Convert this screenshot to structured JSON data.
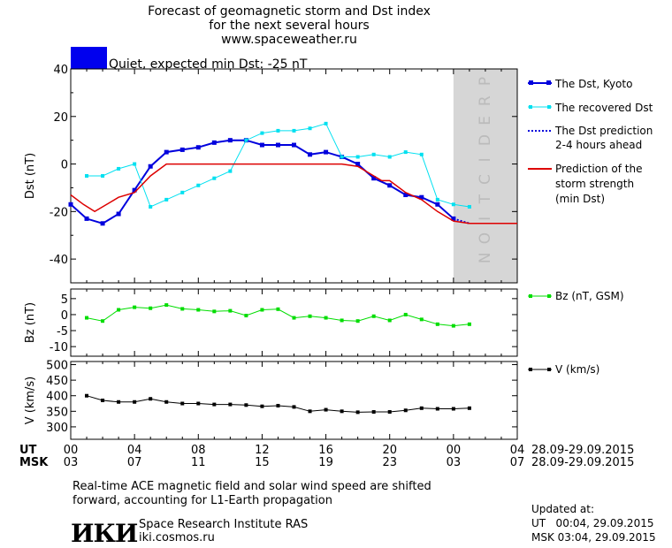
{
  "header": {
    "title_lines": [
      "Forecast of geomagnetic storm and Dst index",
      "for the next several hours",
      "www.spaceweather.ru"
    ],
    "status_text": "Quiet, expected min Dst: -25 nT",
    "status_color": "#0000ee"
  },
  "legend": {
    "dst_kyoto": "The Dst, Kyoto",
    "recovered": "The recovered Dst",
    "prediction_lines": [
      "The Dst prediction",
      "2-4 hours ahead"
    ],
    "strength_lines": [
      "Prediction of the",
      "storm strength",
      "(min Dst)"
    ],
    "bz": "Bz (nT, GSM)",
    "v": "V (km/s)"
  },
  "prediction_label": "PREDICTION",
  "time_axis": {
    "ut_label": "UT",
    "msk_label": "MSK",
    "ut_ticks": [
      "00",
      "04",
      "08",
      "12",
      "16",
      "20",
      "00",
      "04"
    ],
    "msk_ticks": [
      "03",
      "07",
      "11",
      "15",
      "19",
      "23",
      "03",
      "07"
    ],
    "ut_date_range": "28.09-29.09.2015",
    "msk_date_range": "28.09-29.09.2015"
  },
  "footer": {
    "note_lines": [
      "Real-time ACE magnetic field and solar wind speed are shifted",
      "forward, accounting for L1-Earth propagation"
    ],
    "logo_text": "ИКИ",
    "institute": "Space Research Institute RAS",
    "url": "iki.cosmos.ru",
    "updated_label": "Updated at:",
    "updated_ut": "UT   00:04, 29.09.2015",
    "updated_msk": "MSK 03:04, 29.09.2015"
  },
  "colors": {
    "dst": "#0000dd",
    "recovered": "#00e0f0",
    "prediction": "#0000dd",
    "strength": "#dd0000",
    "bz": "#00dd00",
    "v": "#000000",
    "prediction_zone": "#d6d6d6"
  },
  "chart_data": [
    {
      "type": "line",
      "ylabel": "Dst (nT)",
      "xlim": [
        0,
        28
      ],
      "prediction_zone": [
        24,
        28
      ],
      "ylim": [
        -50,
        40
      ],
      "yticks": [
        40,
        20,
        0,
        -20,
        -40
      ],
      "series": [
        {
          "name": "The Dst, Kyoto",
          "x": [
            0,
            1,
            2,
            3,
            4,
            5,
            6,
            7,
            8,
            9,
            10,
            11,
            12,
            13,
            14,
            15,
            16,
            17,
            18,
            19,
            20,
            21,
            22,
            23,
            24
          ],
          "y": [
            -17,
            -23,
            -25,
            -21,
            -11,
            -1,
            5,
            6,
            7,
            9,
            10,
            10,
            8,
            8,
            8,
            4,
            5,
            3,
            0,
            -6,
            -9,
            -13,
            -14,
            -17,
            -23
          ]
        },
        {
          "name": "The recovered Dst",
          "x": [
            1,
            2,
            3,
            4,
            5,
            6,
            7,
            8,
            9,
            10,
            11,
            12,
            13,
            14,
            15,
            16,
            17,
            18,
            19,
            20,
            21,
            22,
            23,
            24,
            25
          ],
          "y": [
            -5,
            -5,
            -2,
            0,
            -18,
            -15,
            -12,
            -9,
            -6,
            -3,
            10,
            13,
            14,
            14,
            15,
            17,
            3,
            3,
            4,
            3,
            5,
            4,
            -15,
            -17,
            -18
          ]
        },
        {
          "name": "The Dst prediction 2-4 hours ahead",
          "x": [
            24,
            24.5,
            25
          ],
          "y": [
            -23,
            -24,
            -25
          ]
        },
        {
          "name": "Prediction of the storm strength (min Dst)",
          "x": [
            0,
            0.8,
            1.5,
            2.5,
            3,
            4,
            5,
            6,
            7,
            8,
            9,
            10,
            11,
            12,
            13,
            14,
            15,
            16,
            17,
            18,
            18.5,
            19.5,
            20,
            21,
            22,
            23,
            24,
            25,
            26,
            27,
            28
          ],
          "y": [
            -13,
            -17,
            -20,
            -16,
            -14,
            -12,
            -5,
            0,
            0,
            0,
            0,
            0,
            0,
            0,
            0,
            0,
            0,
            0,
            0,
            -1,
            -3,
            -7,
            -7,
            -12,
            -15,
            -20,
            -24,
            -25,
            -25,
            -25,
            -25
          ]
        }
      ]
    },
    {
      "type": "line",
      "ylabel": "Bz (nT)",
      "xlim": [
        0,
        28
      ],
      "ylim": [
        -13,
        8
      ],
      "yticks": [
        5,
        0,
        -5,
        -10
      ],
      "series": [
        {
          "name": "Bz (nT, GSM)",
          "x": [
            1,
            2,
            3,
            4,
            5,
            6,
            7,
            8,
            9,
            10,
            11,
            12,
            13,
            14,
            15,
            16,
            17,
            18,
            19,
            20,
            21,
            22,
            23,
            24,
            25
          ],
          "y": [
            -1,
            -2,
            1.5,
            2.3,
            2,
            3,
            1.8,
            1.5,
            1,
            1.2,
            -0.3,
            1.5,
            1.7,
            -1,
            -0.5,
            -1,
            -1.8,
            -2,
            -0.5,
            -1.8,
            0,
            -1.5,
            -3,
            -3.5,
            -3
          ]
        }
      ]
    },
    {
      "type": "line",
      "ylabel": "V (km/s)",
      "xlim": [
        0,
        28
      ],
      "ylim": [
        260,
        510
      ],
      "yticks": [
        500,
        450,
        400,
        350,
        300
      ],
      "series": [
        {
          "name": "V (km/s)",
          "x": [
            1,
            2,
            3,
            4,
            5,
            6,
            7,
            8,
            9,
            10,
            11,
            12,
            13,
            14,
            15,
            16,
            17,
            18,
            19,
            20,
            21,
            22,
            23,
            24,
            25
          ],
          "y": [
            400,
            385,
            380,
            380,
            390,
            380,
            375,
            375,
            372,
            372,
            370,
            366,
            368,
            364,
            350,
            355,
            350,
            347,
            348,
            348,
            353,
            360,
            358,
            358,
            360
          ]
        }
      ]
    }
  ]
}
